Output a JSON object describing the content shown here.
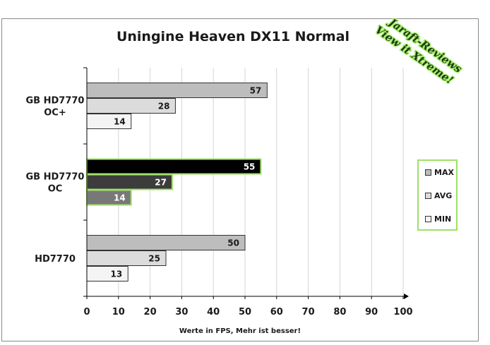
{
  "chart_data": {
    "type": "bar",
    "orientation": "horizontal",
    "title": "Uningine Heaven DX11 Normal",
    "xlabel": "Werte in FPS, Mehr ist besser!",
    "ylabel": "",
    "xlim": [
      0,
      100
    ],
    "xticks": [
      0,
      10,
      20,
      30,
      40,
      50,
      60,
      70,
      80,
      90,
      100
    ],
    "grid": true,
    "legend_position": "right",
    "categories": [
      {
        "lines": [
          "GB HD7770",
          "OC+"
        ],
        "highlight": false
      },
      {
        "lines": [
          "GB HD7770",
          "OC"
        ],
        "highlight": true
      },
      {
        "lines": [
          "HD7770"
        ],
        "highlight": false
      }
    ],
    "series": [
      {
        "name": "MAX",
        "values": [
          57,
          55,
          50
        ]
      },
      {
        "name": "AVG",
        "values": [
          28,
          27,
          25
        ]
      },
      {
        "name": "MIN",
        "values": [
          14,
          14,
          13
        ]
      }
    ]
  },
  "watermark": {
    "line1": "Jaraft-Reviews",
    "line2": "View it Xtreme!"
  },
  "colors": {
    "normal": {
      "MAX": "#bdbdbd",
      "AVG": "#dcdcdc",
      "MIN": "#f4f4f4"
    },
    "highlight": {
      "MAX": "#000000",
      "AVG": "#3c3c3c",
      "MIN": "#787878"
    },
    "highlight_border": "#9fe06a",
    "grid": "#d4d4d4",
    "watermark_fill": "#1f3a10",
    "watermark_glow": "#a8f070"
  }
}
